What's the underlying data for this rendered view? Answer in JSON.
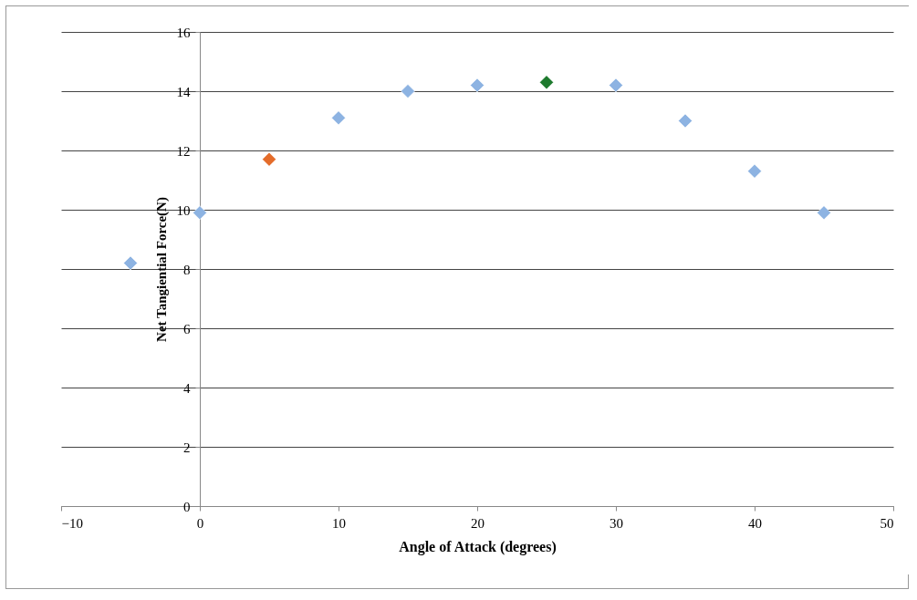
{
  "chart_data": {
    "type": "scatter",
    "xlabel": "Angle of Attack (degrees)",
    "ylabel": "Net Tangiential Force(N)",
    "x": [
      -5,
      0,
      5,
      10,
      15,
      20,
      25,
      30,
      35,
      40,
      45
    ],
    "values": [
      8.2,
      9.9,
      11.7,
      13.1,
      14.0,
      14.2,
      14.3,
      14.2,
      13.0,
      11.3,
      9.9
    ],
    "colors": [
      "#8db3e2",
      "#8db3e2",
      "#e46c2a",
      "#8db3e2",
      "#8db3e2",
      "#8db3e2",
      "#1e7a2e",
      "#8db3e2",
      "#8db3e2",
      "#8db3e2",
      "#8db3e2"
    ],
    "xlim": [
      -10,
      50
    ],
    "xticks": [
      -10,
      0,
      10,
      20,
      30,
      40,
      50
    ],
    "ylim": [
      0,
      16
    ],
    "yticks": [
      0,
      2,
      4,
      6,
      8,
      10,
      12,
      14,
      16
    ],
    "grid": "y",
    "marker": "diamond"
  }
}
